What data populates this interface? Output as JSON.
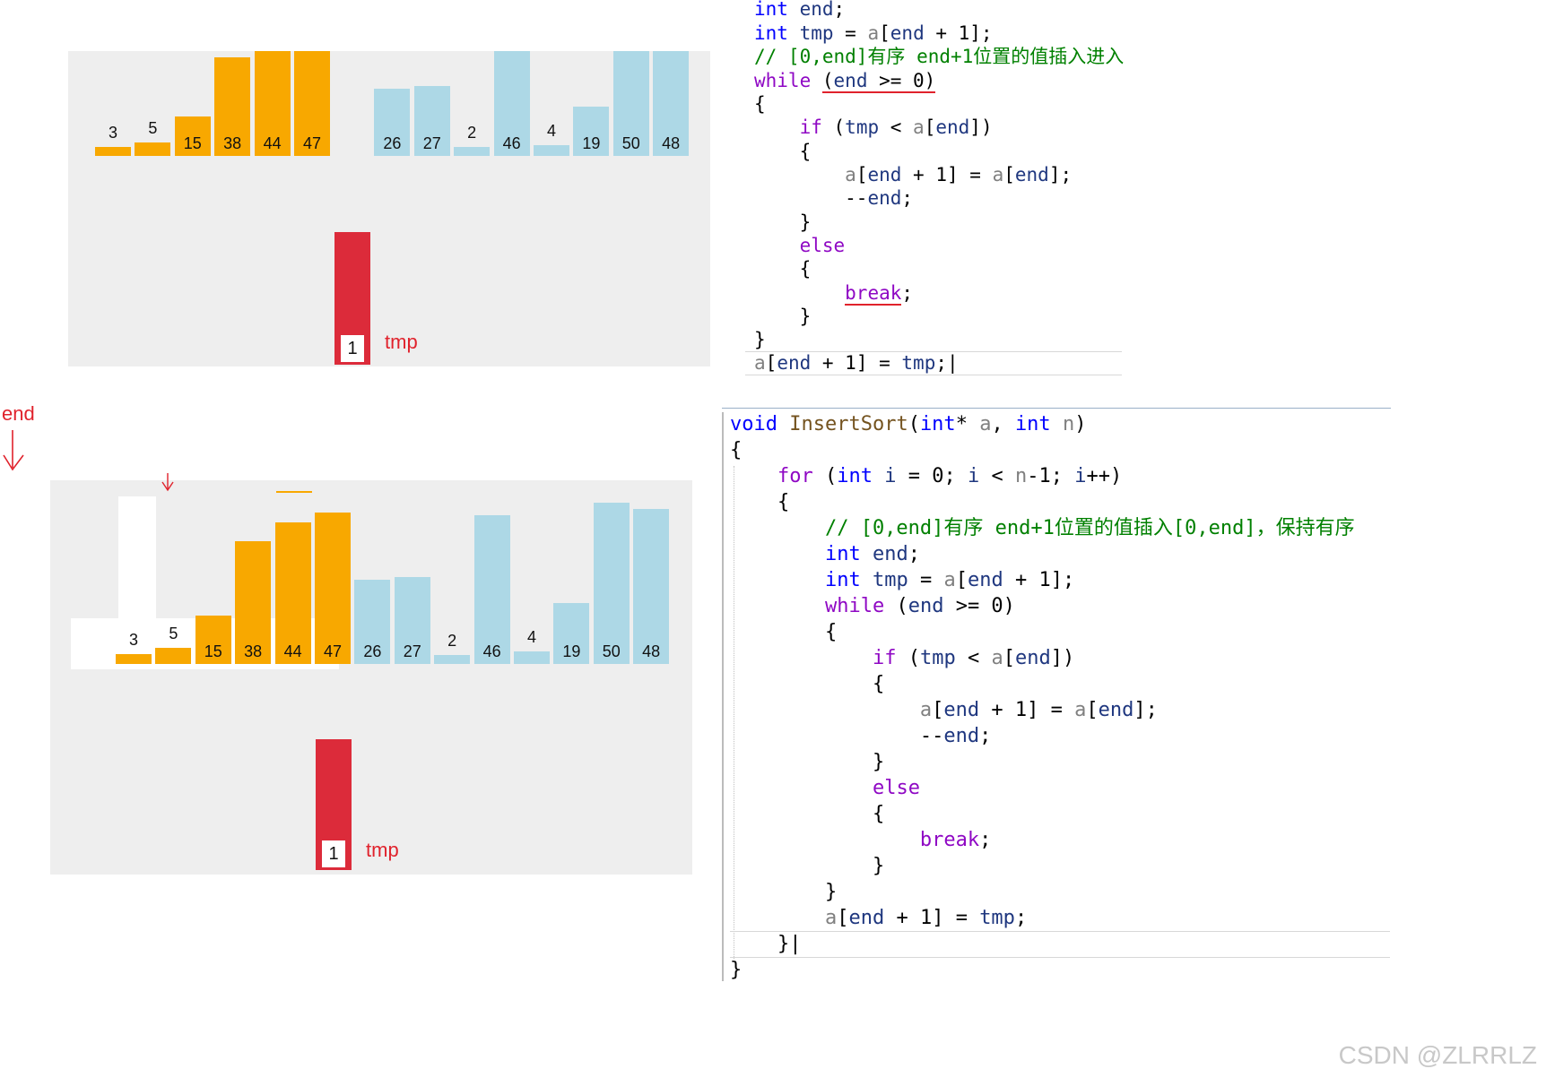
{
  "colors": {
    "sorted": "#f8a800",
    "unsorted": "#add8e6",
    "tmp": "#dc2b3a",
    "annotation": "#e0222c"
  },
  "top_diagram": {
    "bars": [
      {
        "value": "3",
        "state": "sorted"
      },
      {
        "value": "5",
        "state": "sorted"
      },
      {
        "value": "15",
        "state": "sorted"
      },
      {
        "value": "38",
        "state": "sorted"
      },
      {
        "value": "44",
        "state": "sorted"
      },
      {
        "value": "47",
        "state": "sorted"
      },
      {
        "value": "26",
        "state": "unsorted"
      },
      {
        "value": "27",
        "state": "unsorted"
      },
      {
        "value": "2",
        "state": "unsorted"
      },
      {
        "value": "46",
        "state": "unsorted"
      },
      {
        "value": "4",
        "state": "unsorted"
      },
      {
        "value": "19",
        "state": "unsorted"
      },
      {
        "value": "50",
        "state": "unsorted"
      },
      {
        "value": "48",
        "state": "unsorted"
      }
    ],
    "tmp_value": "1",
    "tmp_label": "tmp"
  },
  "bottom_diagram": {
    "bars": [
      {
        "value": "3",
        "state": "sorted"
      },
      {
        "value": "5",
        "state": "sorted"
      },
      {
        "value": "15",
        "state": "sorted"
      },
      {
        "value": "38",
        "state": "sorted"
      },
      {
        "value": "44",
        "state": "sorted"
      },
      {
        "value": "47",
        "state": "sorted"
      },
      {
        "value": "26",
        "state": "unsorted"
      },
      {
        "value": "27",
        "state": "unsorted"
      },
      {
        "value": "2",
        "state": "unsorted"
      },
      {
        "value": "46",
        "state": "unsorted"
      },
      {
        "value": "4",
        "state": "unsorted"
      },
      {
        "value": "19",
        "state": "unsorted"
      },
      {
        "value": "50",
        "state": "unsorted"
      },
      {
        "value": "48",
        "state": "unsorted"
      }
    ],
    "tmp_value": "1",
    "tmp_label": "tmp"
  },
  "end_annotation": "end",
  "top_code": [
    "int end;",
    "int tmp = a[end + 1];",
    "// [0,end]有序 end+1位置的值插入进入",
    "while (end >= 0)",
    "{",
    "    if (tmp < a[end])",
    "    {",
    "        a[end + 1] = a[end];",
    "        --end;",
    "    }",
    "    else",
    "    {",
    "        break;",
    "    }",
    "}",
    "a[end + 1] = tmp;"
  ],
  "bottom_code": [
    "void InsertSort(int* a, int n)",
    "{",
    "    for (int i = 0; i < n-1; i++)",
    "    {",
    "        // [0,end]有序 end+1位置的值插入[0,end]，保持有序",
    "        int end;",
    "        int tmp = a[end + 1];",
    "        while (end >= 0)",
    "        {",
    "            if (tmp < a[end])",
    "            {",
    "                a[end + 1] = a[end];",
    "                --end;",
    "            }",
    "            else",
    "            {",
    "                break;",
    "            }",
    "        }",
    "        a[end + 1] = tmp;",
    "    }",
    "}"
  ],
  "watermark": "CSDN @ZLRRLZ"
}
